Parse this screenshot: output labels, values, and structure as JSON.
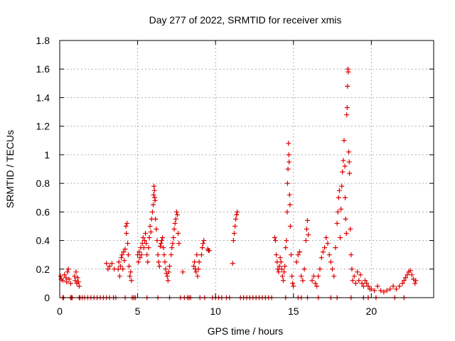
{
  "chart_data": {
    "type": "scatter",
    "title": "Day 277 of 2022, SRMTID for receiver xmis",
    "xlabel": "GPS time / hours",
    "ylabel": "SRMTID / TECUs",
    "xlim": [
      0,
      24
    ],
    "ylim": [
      0,
      1.8
    ],
    "x_ticks": [
      0,
      5,
      10,
      15,
      20
    ],
    "y_ticks": [
      0,
      0.2,
      0.4,
      0.6,
      0.8,
      1,
      1.2,
      1.4,
      1.6,
      1.8
    ],
    "x_tick_labels": [
      "0",
      "5",
      "10",
      "15",
      "20"
    ],
    "y_tick_labels": [
      "0",
      "0.2",
      "0.4",
      "0.6",
      "0.8",
      "1",
      "1.2",
      "1.4",
      "1.6",
      "1.8"
    ],
    "grid": true,
    "marker": "+",
    "marker_color": "#dd0000",
    "series": [
      {
        "name": "SRMTID",
        "points": [
          [
            0.05,
            0.15
          ],
          [
            0.1,
            0.13
          ],
          [
            0.2,
            0.12
          ],
          [
            0.3,
            0.16
          ],
          [
            0.4,
            0.14
          ],
          [
            0.45,
            0.11
          ],
          [
            0.5,
            0.18
          ],
          [
            0.55,
            0.2
          ],
          [
            0.6,
            0.13
          ],
          [
            0.7,
            0.1
          ],
          [
            0.95,
            0.15
          ],
          [
            1.0,
            0.12
          ],
          [
            1.05,
            0.18
          ],
          [
            1.1,
            0.1
          ],
          [
            1.15,
            0.14
          ],
          [
            1.2,
            0.11
          ],
          [
            1.25,
            0.08
          ],
          [
            3.0,
            0.24
          ],
          [
            3.1,
            0.2
          ],
          [
            3.2,
            0.22
          ],
          [
            3.35,
            0.24
          ],
          [
            3.5,
            0.2
          ],
          [
            3.75,
            0.2
          ],
          [
            3.8,
            0.25
          ],
          [
            3.85,
            0.15
          ],
          [
            3.9,
            0.22
          ],
          [
            3.95,
            0.28
          ],
          [
            4.0,
            0.3
          ],
          [
            4.05,
            0.2
          ],
          [
            4.1,
            0.32
          ],
          [
            4.15,
            0.26
          ],
          [
            4.2,
            0.34
          ],
          [
            4.25,
            0.5
          ],
          [
            4.28,
            0.45
          ],
          [
            4.32,
            0.52
          ],
          [
            4.36,
            0.38
          ],
          [
            4.4,
            0.3
          ],
          [
            4.45,
            0.22
          ],
          [
            4.5,
            0.15
          ],
          [
            4.55,
            0.18
          ],
          [
            4.6,
            0.12
          ],
          [
            5.0,
            0.3
          ],
          [
            5.05,
            0.25
          ],
          [
            5.1,
            0.32
          ],
          [
            5.15,
            0.28
          ],
          [
            5.2,
            0.35
          ],
          [
            5.25,
            0.3
          ],
          [
            5.3,
            0.38
          ],
          [
            5.35,
            0.42
          ],
          [
            5.4,
            0.35
          ],
          [
            5.45,
            0.4
          ],
          [
            5.5,
            0.45
          ],
          [
            5.55,
            0.38
          ],
          [
            5.6,
            0.3
          ],
          [
            5.65,
            0.25
          ],
          [
            5.7,
            0.35
          ],
          [
            5.75,
            0.42
          ],
          [
            5.8,
            0.5
          ],
          [
            5.85,
            0.46
          ],
          [
            5.9,
            0.55
          ],
          [
            5.95,
            0.6
          ],
          [
            6.0,
            0.65
          ],
          [
            6.02,
            0.72
          ],
          [
            6.05,
            0.78
          ],
          [
            6.08,
            0.75
          ],
          [
            6.1,
            0.7
          ],
          [
            6.12,
            0.68
          ],
          [
            6.15,
            0.55
          ],
          [
            6.2,
            0.48
          ],
          [
            6.25,
            0.4
          ],
          [
            6.3,
            0.3
          ],
          [
            6.35,
            0.25
          ],
          [
            6.4,
            0.22
          ],
          [
            6.45,
            0.36
          ],
          [
            6.5,
            0.38
          ],
          [
            6.55,
            0.4
          ],
          [
            6.6,
            0.42
          ],
          [
            6.65,
            0.35
          ],
          [
            6.7,
            0.3
          ],
          [
            6.75,
            0.25
          ],
          [
            6.8,
            0.2
          ],
          [
            6.85,
            0.17
          ],
          [
            6.9,
            0.15
          ],
          [
            6.95,
            0.12
          ],
          [
            7.0,
            0.18
          ],
          [
            7.05,
            0.22
          ],
          [
            7.15,
            0.3
          ],
          [
            7.2,
            0.35
          ],
          [
            7.25,
            0.38
          ],
          [
            7.3,
            0.42
          ],
          [
            7.35,
            0.48
          ],
          [
            7.4,
            0.52
          ],
          [
            7.45,
            0.55
          ],
          [
            7.5,
            0.6
          ],
          [
            7.55,
            0.58
          ],
          [
            7.6,
            0.45
          ],
          [
            7.65,
            0.38
          ],
          [
            7.9,
            0.18
          ],
          [
            8.6,
            0.22
          ],
          [
            8.65,
            0.25
          ],
          [
            8.7,
            0.2
          ],
          [
            8.75,
            0.18
          ],
          [
            8.8,
            0.3
          ],
          [
            8.85,
            0.15
          ],
          [
            8.9,
            0.2
          ],
          [
            8.95,
            0.25
          ],
          [
            9.1,
            0.3
          ],
          [
            9.15,
            0.35
          ],
          [
            9.2,
            0.38
          ],
          [
            9.25,
            0.4
          ],
          [
            9.5,
            0.34
          ],
          [
            9.55,
            0.33
          ],
          [
            9.6,
            0.33
          ],
          [
            11.1,
            0.24
          ],
          [
            11.15,
            0.4
          ],
          [
            11.2,
            0.45
          ],
          [
            11.25,
            0.5
          ],
          [
            11.3,
            0.55
          ],
          [
            11.35,
            0.58
          ],
          [
            11.4,
            0.6
          ],
          [
            13.8,
            0.42
          ],
          [
            13.85,
            0.4
          ],
          [
            13.9,
            0.3
          ],
          [
            13.95,
            0.25
          ],
          [
            14.0,
            0.2
          ],
          [
            14.05,
            0.18
          ],
          [
            14.1,
            0.22
          ],
          [
            14.15,
            0.28
          ],
          [
            14.2,
            0.25
          ],
          [
            14.25,
            0.2
          ],
          [
            14.3,
            0.15
          ],
          [
            14.35,
            0.12
          ],
          [
            14.4,
            0.18
          ],
          [
            14.45,
            0.22
          ],
          [
            14.5,
            0.35
          ],
          [
            14.55,
            0.4
          ],
          [
            14.6,
            0.6
          ],
          [
            14.62,
            0.8
          ],
          [
            14.65,
            0.9
          ],
          [
            14.68,
            1.08
          ],
          [
            14.7,
            1.0
          ],
          [
            14.72,
            0.95
          ],
          [
            14.75,
            0.72
          ],
          [
            14.78,
            0.65
          ],
          [
            14.8,
            0.5
          ],
          [
            14.85,
            0.3
          ],
          [
            14.9,
            0.15
          ],
          [
            14.95,
            0.1
          ],
          [
            15.0,
            0.08
          ],
          [
            15.2,
            0.25
          ],
          [
            15.3,
            0.3
          ],
          [
            15.4,
            0.32
          ],
          [
            15.5,
            0.15
          ],
          [
            15.6,
            0.12
          ],
          [
            15.7,
            0.2
          ],
          [
            15.8,
            0.4
          ],
          [
            15.85,
            0.48
          ],
          [
            15.9,
            0.54
          ],
          [
            15.95,
            0.44
          ],
          [
            16.2,
            0.12
          ],
          [
            16.3,
            0.15
          ],
          [
            16.4,
            0.1
          ],
          [
            16.5,
            0.08
          ],
          [
            16.6,
            0.15
          ],
          [
            16.7,
            0.2
          ],
          [
            16.8,
            0.28
          ],
          [
            16.9,
            0.32
          ],
          [
            17.0,
            0.35
          ],
          [
            17.1,
            0.42
          ],
          [
            17.2,
            0.38
          ],
          [
            17.3,
            0.3
          ],
          [
            17.4,
            0.25
          ],
          [
            17.5,
            0.2
          ],
          [
            17.6,
            0.15
          ],
          [
            17.7,
            0.35
          ],
          [
            17.8,
            0.52
          ],
          [
            17.85,
            0.6
          ],
          [
            17.9,
            0.7
          ],
          [
            17.95,
            0.75
          ],
          [
            18.0,
            0.42
          ],
          [
            18.05,
            0.62
          ],
          [
            18.1,
            0.78
          ],
          [
            18.15,
            0.88
          ],
          [
            18.2,
            0.96
          ],
          [
            18.25,
            1.1
          ],
          [
            18.3,
            0.92
          ],
          [
            18.32,
            0.7
          ],
          [
            18.35,
            0.55
          ],
          [
            18.4,
            0.45
          ],
          [
            18.42,
            1.28
          ],
          [
            18.45,
            1.33
          ],
          [
            18.47,
            1.48
          ],
          [
            18.5,
            1.6
          ],
          [
            18.52,
            1.58
          ],
          [
            18.55,
            1.02
          ],
          [
            18.58,
            0.95
          ],
          [
            18.6,
            0.87
          ],
          [
            18.65,
            0.48
          ],
          [
            18.7,
            0.3
          ],
          [
            18.75,
            0.2
          ],
          [
            18.8,
            0.12
          ],
          [
            18.9,
            0.15
          ],
          [
            19.0,
            0.1
          ],
          [
            19.1,
            0.18
          ],
          [
            19.2,
            0.12
          ],
          [
            19.3,
            0.16
          ],
          [
            19.4,
            0.1
          ],
          [
            19.5,
            0.08
          ],
          [
            19.6,
            0.12
          ],
          [
            19.7,
            0.1
          ],
          [
            19.8,
            0.08
          ],
          [
            19.9,
            0.06
          ],
          [
            20.0,
            0.06
          ],
          [
            20.2,
            0.05
          ],
          [
            20.4,
            0.08
          ],
          [
            20.6,
            0.05
          ],
          [
            20.8,
            0.04
          ],
          [
            21.0,
            0.05
          ],
          [
            21.2,
            0.06
          ],
          [
            21.4,
            0.08
          ],
          [
            21.6,
            0.06
          ],
          [
            21.8,
            0.08
          ],
          [
            22.0,
            0.1
          ],
          [
            22.1,
            0.12
          ],
          [
            22.2,
            0.14
          ],
          [
            22.3,
            0.16
          ],
          [
            22.4,
            0.18
          ],
          [
            22.5,
            0.19
          ],
          [
            22.6,
            0.16
          ],
          [
            22.7,
            0.13
          ],
          [
            22.8,
            0.1
          ],
          [
            22.85,
            0.12
          ],
          [
            0.2,
            0.0
          ],
          [
            0.25,
            0.0
          ],
          [
            0.7,
            0.0
          ],
          [
            0.75,
            0.0
          ],
          [
            0.8,
            0.0
          ],
          [
            1.25,
            0.0
          ],
          [
            1.3,
            0.0
          ],
          [
            1.45,
            0.0
          ],
          [
            1.6,
            0.0
          ],
          [
            1.8,
            0.0
          ],
          [
            2.0,
            0.0
          ],
          [
            2.2,
            0.0
          ],
          [
            2.4,
            0.0
          ],
          [
            2.6,
            0.0
          ],
          [
            2.8,
            0.0
          ],
          [
            3.0,
            0.0
          ],
          [
            3.2,
            0.0
          ],
          [
            3.45,
            0.0
          ],
          [
            3.6,
            0.0
          ],
          [
            4.2,
            0.0
          ],
          [
            4.65,
            0.0
          ],
          [
            4.75,
            0.0
          ],
          [
            4.85,
            0.0
          ],
          [
            5.6,
            0.0
          ],
          [
            6.3,
            0.0
          ],
          [
            7.05,
            0.0
          ],
          [
            7.75,
            0.0
          ],
          [
            8.0,
            0.0
          ],
          [
            8.2,
            0.0
          ],
          [
            8.3,
            0.0
          ],
          [
            8.4,
            0.0
          ],
          [
            9.0,
            0.0
          ],
          [
            9.3,
            0.0
          ],
          [
            9.8,
            0.0
          ],
          [
            10.0,
            0.0
          ],
          [
            10.2,
            0.0
          ],
          [
            10.4,
            0.0
          ],
          [
            10.7,
            0.0
          ],
          [
            10.9,
            0.0
          ],
          [
            11.6,
            0.0
          ],
          [
            11.8,
            0.0
          ],
          [
            12.0,
            0.0
          ],
          [
            12.2,
            0.0
          ],
          [
            12.4,
            0.0
          ],
          [
            12.6,
            0.0
          ],
          [
            12.8,
            0.0
          ],
          [
            13.0,
            0.0
          ],
          [
            13.2,
            0.0
          ],
          [
            13.4,
            0.0
          ],
          [
            13.6,
            0.0
          ],
          [
            14.5,
            0.0
          ],
          [
            15.3,
            0.0
          ],
          [
            15.5,
            0.0
          ],
          [
            15.9,
            0.0
          ],
          [
            16.6,
            0.0
          ],
          [
            17.4,
            0.0
          ],
          [
            17.8,
            0.0
          ],
          [
            18.7,
            0.0
          ],
          [
            19.5,
            0.0
          ],
          [
            19.8,
            0.0
          ],
          [
            20.3,
            0.0
          ],
          [
            21.5,
            0.0
          ],
          [
            22.1,
            0.0
          ]
        ]
      }
    ]
  }
}
